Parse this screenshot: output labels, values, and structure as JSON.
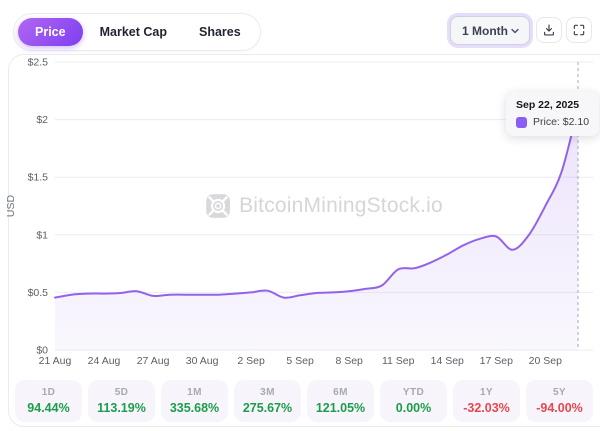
{
  "header": {
    "tabs": [
      {
        "label": "Price",
        "active": true
      },
      {
        "label": "Market Cap",
        "active": false
      },
      {
        "label": "Shares",
        "active": false
      }
    ],
    "range_select": {
      "value": "1 Month"
    },
    "buttons": [
      {
        "name": "download",
        "icon": "download-icon"
      },
      {
        "name": "fullscreen",
        "icon": "fullscreen-icon"
      }
    ]
  },
  "watermark": {
    "text": "BitcoinMiningStock.io"
  },
  "tooltip": {
    "date": "Sep 22, 2025",
    "label": "Price: $2.10",
    "swatch_color": "#8b5cf6"
  },
  "colors": {
    "accent": "#7d3ff0",
    "line": "#9263e8",
    "fill": "#9263e8",
    "positive": "#1b9e4b",
    "negative": "#e5484d",
    "grid": "#ececf0",
    "axis_text": "#5b6069"
  },
  "chart_data": {
    "type": "area",
    "title": "",
    "xlabel": "",
    "ylabel": "USD",
    "ylim": [
      0,
      2.5
    ],
    "grid": "horizontal",
    "legend": "none",
    "y_ticks": [
      {
        "value": 0,
        "label": "$0"
      },
      {
        "value": 0.5,
        "label": "$0.5"
      },
      {
        "value": 1,
        "label": "$1"
      },
      {
        "value": 1.5,
        "label": "$1.5"
      },
      {
        "value": 2,
        "label": "$2"
      },
      {
        "value": 2.5,
        "label": "$2.5"
      }
    ],
    "x_tick_labels": [
      "21 Aug",
      "24 Aug",
      "27 Aug",
      "30 Aug",
      "2 Sep",
      "5 Sep",
      "8 Sep",
      "11 Sep",
      "14 Sep",
      "17 Sep",
      "20 Sep"
    ],
    "series": [
      {
        "name": "Price",
        "unit": "USD",
        "dates": [
          "Aug 21",
          "Aug 22",
          "Aug 23",
          "Aug 24",
          "Aug 25",
          "Aug 26",
          "Aug 27",
          "Aug 28",
          "Aug 29",
          "Aug 30",
          "Aug 31",
          "Sep 1",
          "Sep 2",
          "Sep 3",
          "Sep 4",
          "Sep 5",
          "Sep 6",
          "Sep 7",
          "Sep 8",
          "Sep 9",
          "Sep 10",
          "Sep 11",
          "Sep 12",
          "Sep 13",
          "Sep 14",
          "Sep 15",
          "Sep 16",
          "Sep 17",
          "Sep 18",
          "Sep 19",
          "Sep 20",
          "Sep 21",
          "Sep 22"
        ],
        "values": [
          0.455,
          0.48,
          0.49,
          0.49,
          0.495,
          0.51,
          0.47,
          0.48,
          0.48,
          0.48,
          0.48,
          0.49,
          0.5,
          0.515,
          0.455,
          0.475,
          0.495,
          0.5,
          0.51,
          0.53,
          0.56,
          0.7,
          0.71,
          0.76,
          0.83,
          0.91,
          0.965,
          0.985,
          0.87,
          1.0,
          1.25,
          1.55,
          2.1
        ]
      }
    ],
    "crosshair": {
      "date": "Sep 22, 2025",
      "value": 2.1
    }
  },
  "stats": [
    {
      "period": "1D",
      "value": "94.44%",
      "direction": "up"
    },
    {
      "period": "5D",
      "value": "113.19%",
      "direction": "up"
    },
    {
      "period": "1M",
      "value": "335.68%",
      "direction": "up"
    },
    {
      "period": "3M",
      "value": "275.67%",
      "direction": "up"
    },
    {
      "period": "6M",
      "value": "121.05%",
      "direction": "up"
    },
    {
      "period": "YTD",
      "value": "0.00%",
      "direction": "up"
    },
    {
      "period": "1Y",
      "value": "-32.03%",
      "direction": "down"
    },
    {
      "period": "5Y",
      "value": "-94.00%",
      "direction": "down"
    }
  ]
}
